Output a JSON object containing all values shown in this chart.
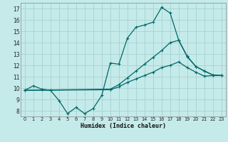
{
  "xlabel": "Humidex (Indice chaleur)",
  "xlim": [
    -0.5,
    23.5
  ],
  "ylim": [
    7.5,
    17.5
  ],
  "xticks": [
    0,
    1,
    2,
    3,
    4,
    5,
    6,
    7,
    8,
    9,
    10,
    11,
    12,
    13,
    14,
    15,
    16,
    17,
    18,
    19,
    20,
    21,
    22,
    23
  ],
  "yticks": [
    8,
    9,
    10,
    11,
    12,
    13,
    14,
    15,
    16,
    17
  ],
  "background_color": "#c5eaea",
  "grid_color": "#acd4d4",
  "line_color": "#006868",
  "line1_x": [
    0,
    1,
    2,
    3,
    4,
    5,
    6,
    7,
    8,
    9,
    10,
    11,
    12,
    13,
    14,
    15,
    16,
    17,
    18,
    19,
    20,
    21,
    22,
    23
  ],
  "line1_y": [
    9.8,
    10.2,
    9.9,
    9.8,
    8.9,
    7.75,
    8.3,
    7.75,
    8.2,
    9.35,
    12.2,
    12.1,
    14.4,
    15.35,
    15.55,
    15.8,
    17.1,
    16.6,
    14.2,
    12.75,
    11.9,
    11.5,
    11.15,
    11.1
  ],
  "line2_x": [
    0,
    23
  ],
  "line2_y": [
    9.8,
    11.1
  ],
  "line3_x": [
    0,
    23
  ],
  "line3_y": [
    9.8,
    11.1
  ],
  "line2_via_x": [
    0,
    10,
    11,
    12,
    13,
    14,
    15,
    16,
    17,
    18,
    19,
    20,
    21,
    22,
    23
  ],
  "line2_via_y": [
    9.8,
    9.9,
    10.3,
    10.9,
    11.5,
    12.1,
    12.7,
    13.3,
    14.0,
    14.2,
    12.8,
    11.9,
    11.5,
    11.15,
    11.1
  ],
  "line3_via_x": [
    0,
    10,
    11,
    12,
    13,
    14,
    15,
    16,
    17,
    18,
    19,
    20,
    21,
    22,
    23
  ],
  "line3_via_y": [
    9.8,
    9.85,
    10.1,
    10.5,
    10.8,
    11.1,
    11.4,
    11.8,
    12.0,
    12.3,
    11.8,
    11.4,
    11.05,
    11.1,
    11.1
  ]
}
